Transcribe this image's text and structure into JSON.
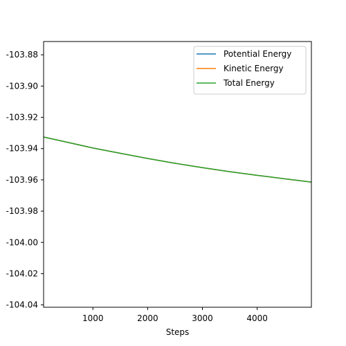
{
  "chart_data": {
    "type": "line",
    "title": "",
    "xlabel": "Steps",
    "ylabel": "",
    "xlim": [
      100,
      4990
    ],
    "ylim": [
      -104.0415,
      -103.8715
    ],
    "x_ticks": [
      1000,
      2000,
      3000,
      4000
    ],
    "x_tick_labels": [
      "1000",
      "2000",
      "3000",
      "4000"
    ],
    "y_ticks": [
      -103.88,
      -103.9,
      -103.92,
      -103.94,
      -103.96,
      -103.98,
      -104.0,
      -104.02,
      -104.04
    ],
    "y_tick_labels": [
      "-103.88",
      "-103.90",
      "-103.92",
      "-103.94",
      "-103.96",
      "-103.98",
      "-104.00",
      "-104.02",
      "-104.04"
    ],
    "grid": false,
    "legend_position": "top-right",
    "series": [
      {
        "name": "Potential Energy",
        "color": "#1f77b4",
        "x": [
          100,
          500,
          1000,
          1500,
          2000,
          2500,
          3000,
          3500,
          4000,
          4500,
          4990
        ],
        "y": [
          -103.9326,
          -103.9357,
          -103.9396,
          -103.943,
          -103.9463,
          -103.9494,
          -103.9522,
          -103.9548,
          -103.9571,
          -103.9593,
          -103.9614
        ]
      },
      {
        "name": "Kinetic Energy",
        "color": "#ff7f0e",
        "x": [
          100,
          500,
          1000,
          1500,
          2000,
          2500,
          3000,
          3500,
          4000,
          4500,
          4990
        ],
        "y": [
          -103.9326,
          -103.9357,
          -103.9396,
          -103.943,
          -103.9463,
          -103.9494,
          -103.9522,
          -103.9548,
          -103.9571,
          -103.9593,
          -103.9614
        ]
      },
      {
        "name": "Total Energy",
        "color": "#2ca02c",
        "x": [
          100,
          500,
          1000,
          1500,
          2000,
          2500,
          3000,
          3500,
          4000,
          4500,
          4990
        ],
        "y": [
          -103.9326,
          -103.9357,
          -103.9396,
          -103.943,
          -103.9463,
          -103.9494,
          -103.9522,
          -103.9548,
          -103.9571,
          -103.9593,
          -103.9614
        ]
      }
    ]
  }
}
